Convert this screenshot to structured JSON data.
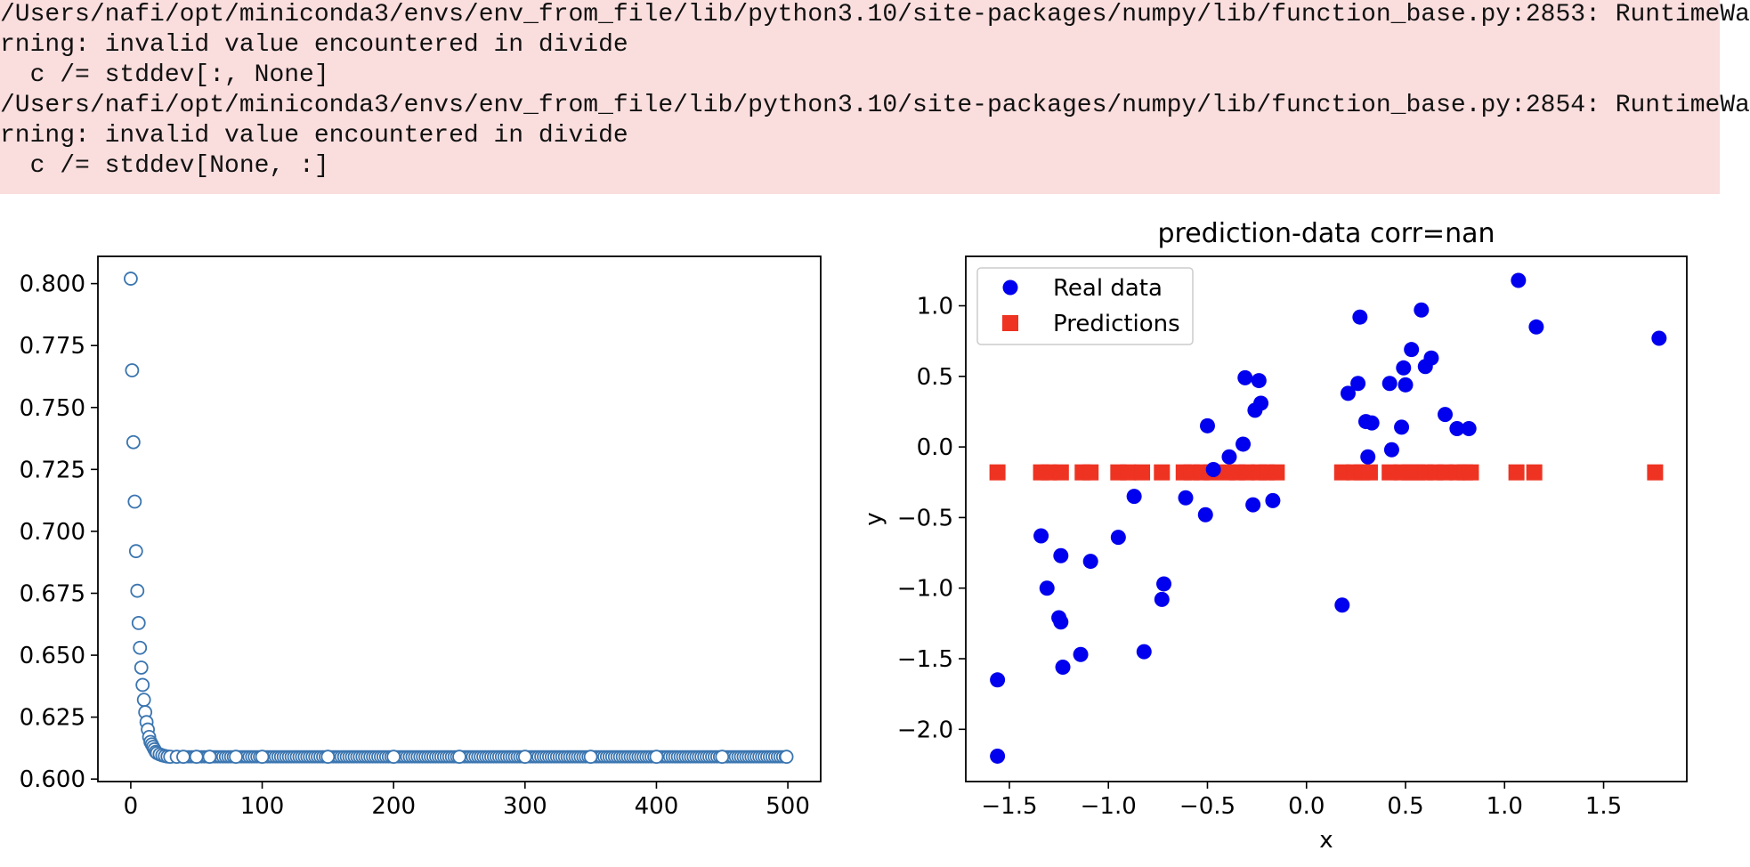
{
  "stderr": {
    "lines": [
      "/Users/nafi/opt/miniconda3/envs/env_from_file/lib/python3.10/site-packages/numpy/lib/function_base.py:2853: RuntimeWa",
      "rning: invalid value encountered in divide",
      "  c /= stddev[:, None]",
      "/Users/nafi/opt/miniconda3/envs/env_from_file/lib/python3.10/site-packages/numpy/lib/function_base.py:2854: RuntimeWa",
      "rning: invalid value encountered in divide",
      "  c /= stddev[None, :]"
    ],
    "background_color": "#fadddd"
  },
  "chart_data": [
    {
      "type": "scatter",
      "title": "",
      "xlabel": "",
      "ylabel": "",
      "xlim": [
        -25,
        525
      ],
      "ylim": [
        0.599,
        0.811
      ],
      "xticks": [
        0,
        100,
        200,
        300,
        400,
        500
      ],
      "xtick_labels": [
        "0",
        "100",
        "200",
        "300",
        "400",
        "500"
      ],
      "yticks": [
        0.6,
        0.625,
        0.65,
        0.675,
        0.7,
        0.725,
        0.75,
        0.775,
        0.8
      ],
      "ytick_labels": [
        "0.600",
        "0.625",
        "0.650",
        "0.675",
        "0.700",
        "0.725",
        "0.750",
        "0.775",
        "0.800"
      ],
      "marker": "hollow-circle",
      "color": "#3a75b0",
      "series": [
        {
          "x": [
            0,
            1,
            2,
            3,
            4,
            5,
            6,
            7,
            8,
            9,
            10,
            11,
            12,
            13,
            14,
            15,
            16,
            17,
            18,
            19,
            20,
            22,
            24,
            26,
            28,
            30,
            35,
            40,
            50,
            60,
            80,
            100,
            150,
            200,
            250,
            300,
            350,
            400,
            450,
            499
          ],
          "y": [
            0.802,
            0.765,
            0.736,
            0.712,
            0.692,
            0.676,
            0.663,
            0.653,
            0.645,
            0.638,
            0.632,
            0.627,
            0.623,
            0.62,
            0.617,
            0.615,
            0.614,
            0.613,
            0.612,
            0.611,
            0.6105,
            0.61,
            0.6096,
            0.6093,
            0.6091,
            0.609,
            0.609,
            0.609,
            0.609,
            0.609,
            0.609,
            0.609,
            0.609,
            0.609,
            0.609,
            0.609,
            0.609,
            0.609,
            0.609,
            0.609
          ]
        }
      ],
      "dense_tail": {
        "x_start": 30,
        "x_end": 499,
        "y": 0.609
      }
    },
    {
      "type": "scatter",
      "title": "prediction-data corr=nan",
      "xlabel": "x",
      "ylabel": "y",
      "xlim": [
        -1.72,
        1.92
      ],
      "ylim": [
        -2.37,
        1.35
      ],
      "xticks": [
        -1.5,
        -1.0,
        -0.5,
        0.0,
        0.5,
        1.0,
        1.5
      ],
      "xtick_labels": [
        "−1.5",
        "−1.0",
        "−0.5",
        "0.0",
        "0.5",
        "1.0",
        "1.5"
      ],
      "yticks": [
        -2.0,
        -1.5,
        -1.0,
        -0.5,
        0.0,
        0.5,
        1.0
      ],
      "ytick_labels": [
        "−2.0",
        "−1.5",
        "−1.0",
        "−0.5",
        "0.0",
        "0.5",
        "1.0"
      ],
      "legend_position": "top-left",
      "series": [
        {
          "name": "Real data",
          "marker": "filled-circle",
          "color": "#0000ee",
          "x": [
            -1.56,
            -1.56,
            -1.34,
            -1.31,
            -1.25,
            -1.24,
            -1.24,
            -1.23,
            -1.14,
            -1.09,
            -0.95,
            -0.87,
            -0.82,
            -0.73,
            -0.72,
            -0.61,
            -0.51,
            -0.5,
            -0.47,
            -0.39,
            -0.32,
            -0.31,
            -0.27,
            -0.26,
            -0.24,
            -0.23,
            -0.17,
            0.18,
            0.21,
            0.26,
            0.27,
            0.3,
            0.31,
            0.33,
            0.42,
            0.43,
            0.48,
            0.49,
            0.5,
            0.53,
            0.58,
            0.6,
            0.63,
            0.7,
            0.76,
            0.82,
            1.07,
            1.16,
            1.78
          ],
          "y": [
            -1.65,
            -2.19,
            -0.63,
            -1.0,
            -1.21,
            -0.77,
            -1.24,
            -1.56,
            -1.47,
            -0.81,
            -0.64,
            -0.35,
            -1.45,
            -1.08,
            -0.97,
            -0.36,
            -0.48,
            0.15,
            -0.16,
            -0.07,
            0.02,
            0.49,
            -0.41,
            0.26,
            0.47,
            0.31,
            -0.38,
            -1.12,
            0.38,
            0.45,
            0.92,
            0.18,
            -0.07,
            0.17,
            0.45,
            -0.02,
            0.14,
            0.56,
            0.44,
            0.69,
            0.97,
            0.57,
            0.63,
            0.23,
            0.13,
            0.13,
            1.18,
            0.85,
            0.77
          ]
        },
        {
          "name": "Predictions",
          "marker": "filled-square",
          "color": "#ee3322",
          "x": [
            -1.56,
            -1.34,
            -1.3,
            -1.24,
            -1.13,
            -1.09,
            -0.95,
            -0.9,
            -0.83,
            -0.73,
            -0.62,
            -0.58,
            -0.53,
            -0.48,
            -0.4,
            -0.35,
            -0.3,
            -0.24,
            -0.2,
            -0.15,
            0.18,
            0.24,
            0.28,
            0.32,
            0.42,
            0.48,
            0.52,
            0.56,
            0.6,
            0.65,
            0.7,
            0.76,
            0.8,
            0.83,
            1.06,
            1.15,
            1.76
          ],
          "y": [
            -0.18,
            -0.18,
            -0.18,
            -0.18,
            -0.18,
            -0.18,
            -0.18,
            -0.18,
            -0.18,
            -0.18,
            -0.18,
            -0.18,
            -0.18,
            -0.18,
            -0.18,
            -0.18,
            -0.18,
            -0.18,
            -0.18,
            -0.18,
            -0.18,
            -0.18,
            -0.18,
            -0.18,
            -0.18,
            -0.18,
            -0.18,
            -0.18,
            -0.18,
            -0.18,
            -0.18,
            -0.18,
            -0.18,
            -0.18,
            -0.18,
            -0.18,
            -0.18
          ]
        }
      ]
    }
  ]
}
